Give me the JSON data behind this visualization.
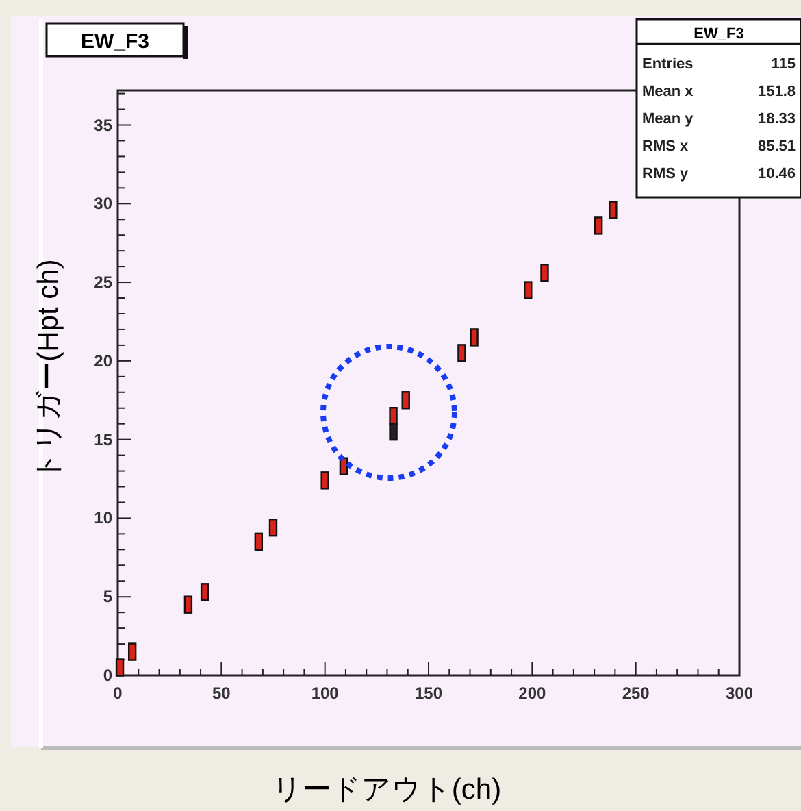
{
  "chart_data": {
    "type": "scatter",
    "title": "EW_F3",
    "xlabel": "リードアウト(ch)",
    "ylabel": "トリガー(Hpt ch)",
    "annotations": [
      "EW_F3",
      "Entries 115",
      "Mean x 151.8",
      "Mean y 18.33",
      "RMS x 85.51",
      "RMS y 10.46"
    ],
    "x": [
      1,
      7,
      34,
      42,
      68,
      75,
      100,
      109,
      133,
      139,
      166,
      172,
      198,
      206,
      232,
      239
    ],
    "series": [
      {
        "color": "#d8231b",
        "values": [
          0.5,
          1.5,
          4.5,
          5.3,
          8.5,
          9.4,
          12.4,
          13.3,
          16.5,
          17.5,
          20.5,
          21.5,
          24.5,
          25.6,
          28.6,
          29.6
        ]
      },
      {
        "color": "#222222",
        "x": [
          133
        ],
        "values": [
          15.5
        ]
      }
    ],
    "marker": "square",
    "xlim": [
      0,
      300
    ],
    "ylim": [
      0,
      37.2
    ],
    "xticks": [
      0,
      {
        "value": 10,
        "label": null
      },
      {
        "value": 20,
        "label": null
      },
      {
        "value": 30,
        "label": null
      },
      {
        "value": 40,
        "label": null
      },
      50,
      {
        "value": 60,
        "label": null
      },
      {
        "value": 70,
        "label": null
      },
      {
        "value": 80,
        "label": null
      },
      {
        "value": 90,
        "label": null
      },
      100,
      {
        "value": 110,
        "label": null
      },
      {
        "value": 120,
        "label": null
      },
      {
        "value": 130,
        "label": null
      },
      {
        "value": 140,
        "label": null
      },
      150,
      {
        "value": 160,
        "label": null
      },
      {
        "value": 170,
        "label": null
      },
      {
        "value": 180,
        "label": null
      },
      {
        "value": 190,
        "label": null
      },
      200,
      {
        "value": 210,
        "label": null
      },
      {
        "value": 220,
        "label": null
      },
      {
        "value": 230,
        "label": null
      },
      {
        "value": 240,
        "label": null
      },
      250,
      {
        "value": 260,
        "label": null
      },
      {
        "value": 270,
        "label": null
      },
      {
        "value": 280,
        "label": null
      },
      {
        "value": 290,
        "label": null
      },
      300
    ],
    "yticks": [
      0,
      {
        "value": 1,
        "label": null
      },
      {
        "value": 2,
        "label": null
      },
      {
        "value": 3,
        "label": null
      },
      {
        "value": 4,
        "label": null
      },
      5,
      {
        "value": 6,
        "label": null
      },
      {
        "value": 7,
        "label": null
      },
      {
        "value": 8,
        "label": null
      },
      {
        "value": 9,
        "label": null
      },
      10,
      {
        "value": 11,
        "label": null
      },
      {
        "value": 12,
        "label": null
      },
      {
        "value": 13,
        "label": null
      },
      {
        "value": 14,
        "label": null
      },
      15,
      {
        "value": 16,
        "label": null
      },
      {
        "value": 17,
        "label": null
      },
      {
        "value": 18,
        "label": null
      },
      {
        "value": 19,
        "label": null
      },
      20,
      {
        "value": 21,
        "label": null
      },
      {
        "value": 22,
        "label": null
      },
      {
        "value": 23,
        "label": null
      },
      {
        "value": 24,
        "label": null
      },
      25,
      {
        "value": 26,
        "label": null
      },
      {
        "value": 27,
        "label": null
      },
      {
        "value": 28,
        "label": null
      },
      {
        "value": 29,
        "label": null
      },
      30,
      {
        "value": 31,
        "label": null
      },
      {
        "value": 32,
        "label": null
      },
      {
        "value": 33,
        "label": null
      },
      {
        "value": 34,
        "label": null
      },
      35,
      {
        "value": 36,
        "label": null
      },
      {
        "value": 37,
        "label": null
      }
    ],
    "grid": false
  }
}
